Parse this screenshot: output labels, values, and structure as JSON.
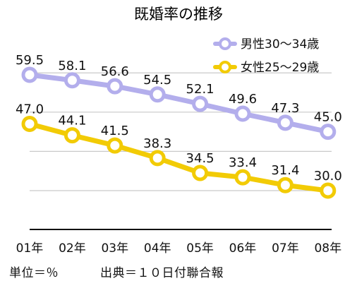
{
  "chart_data": {
    "type": "line",
    "title": "既婚率の推移",
    "categories": [
      "01年",
      "02年",
      "03年",
      "04年",
      "05年",
      "06年",
      "07年",
      "08年"
    ],
    "series": [
      {
        "name": "男性30～34歳",
        "color": "#b3aeec",
        "values": [
          59.5,
          58.1,
          56.6,
          54.5,
          52.1,
          49.6,
          47.3,
          45.0
        ]
      },
      {
        "name": "女性25～29歳",
        "color": "#f2cb05",
        "values": [
          47.0,
          44.1,
          41.5,
          38.3,
          34.5,
          33.4,
          31.4,
          30.0
        ]
      }
    ],
    "ylim": [
      12,
      66
    ],
    "grid": true,
    "legend": "top-right"
  },
  "footer": {
    "unit_text": "単位＝％",
    "source_text": "出典＝１０日付聯合報"
  }
}
